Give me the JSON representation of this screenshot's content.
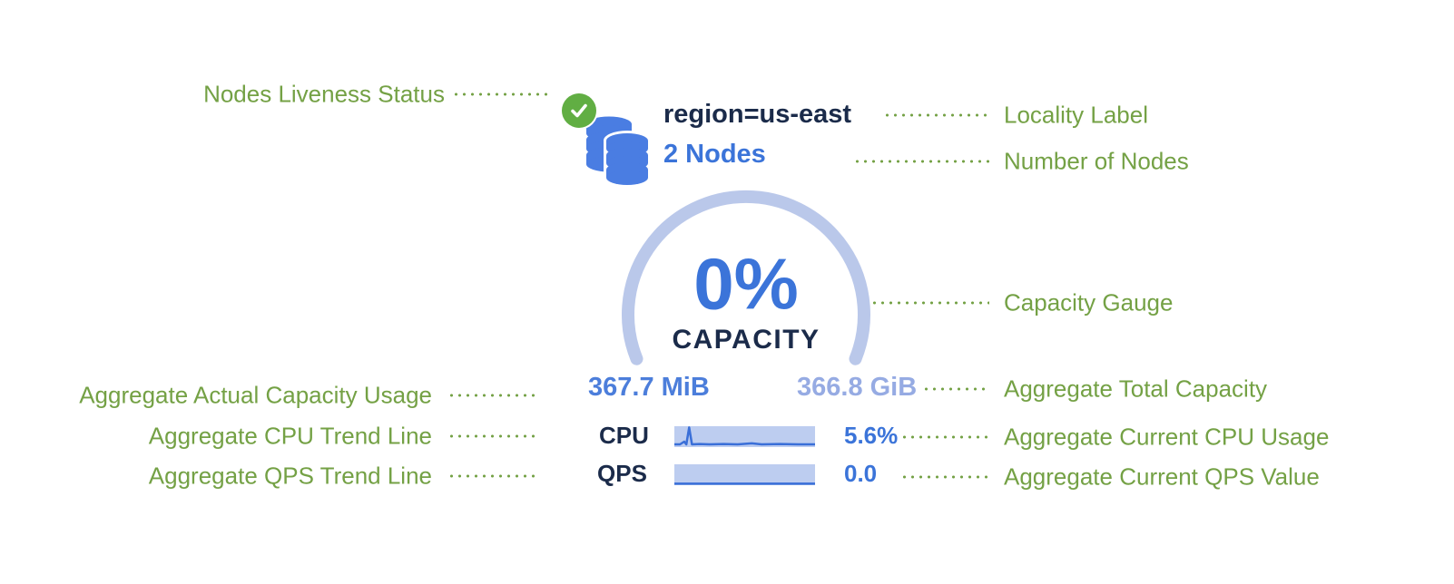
{
  "annotations": {
    "left": [
      {
        "label": "Nodes Liveness Status"
      },
      {
        "label": "Aggregate Actual Capacity Usage"
      },
      {
        "label": "Aggregate CPU Trend Line"
      },
      {
        "label": "Aggregate QPS Trend Line"
      }
    ],
    "right": [
      {
        "label": "Locality Label"
      },
      {
        "label": "Number of Nodes"
      },
      {
        "label": "Capacity Gauge"
      },
      {
        "label": "Aggregate Total Capacity"
      },
      {
        "label": "Aggregate Current CPU Usage"
      },
      {
        "label": "Aggregate Current QPS Value"
      }
    ]
  },
  "node_group": {
    "liveness_icon": "check-circle-icon",
    "nodes_icon": "database-stack-icon",
    "locality": "region=us-east",
    "node_count": "2 Nodes",
    "gauge": {
      "percent": "0%",
      "caption": "CAPACITY",
      "used": "367.7 MiB",
      "total": "366.8 GiB"
    },
    "cpu": {
      "label": "CPU",
      "value": "5.6%",
      "spark": [
        [
          0,
          0.87
        ],
        [
          0.04,
          0.87
        ],
        [
          0.07,
          0.74
        ],
        [
          0.085,
          0.87
        ],
        [
          0.105,
          0.06
        ],
        [
          0.125,
          0.87
        ],
        [
          0.18,
          0.85
        ],
        [
          0.25,
          0.87
        ],
        [
          0.35,
          0.85
        ],
        [
          0.45,
          0.87
        ],
        [
          0.55,
          0.82
        ],
        [
          0.62,
          0.87
        ],
        [
          0.75,
          0.85
        ],
        [
          0.88,
          0.87
        ],
        [
          1,
          0.87
        ]
      ]
    },
    "qps": {
      "label": "QPS",
      "value": "0.0",
      "spark": [
        [
          0,
          0.93
        ],
        [
          1,
          0.93
        ]
      ]
    }
  },
  "colors": {
    "green_label": "#74a145",
    "blue": "#3b74d9",
    "navy": "#1b2b4a",
    "gauge_arc": "#bac8ea",
    "used_blue": "#4c7edb",
    "total_blue": "#96abe3",
    "spark_bg": "#bdcdf0",
    "spark_line": "#3a6fd8",
    "icon_green": "#61ae43",
    "icon_blue": "#4a7de2"
  }
}
